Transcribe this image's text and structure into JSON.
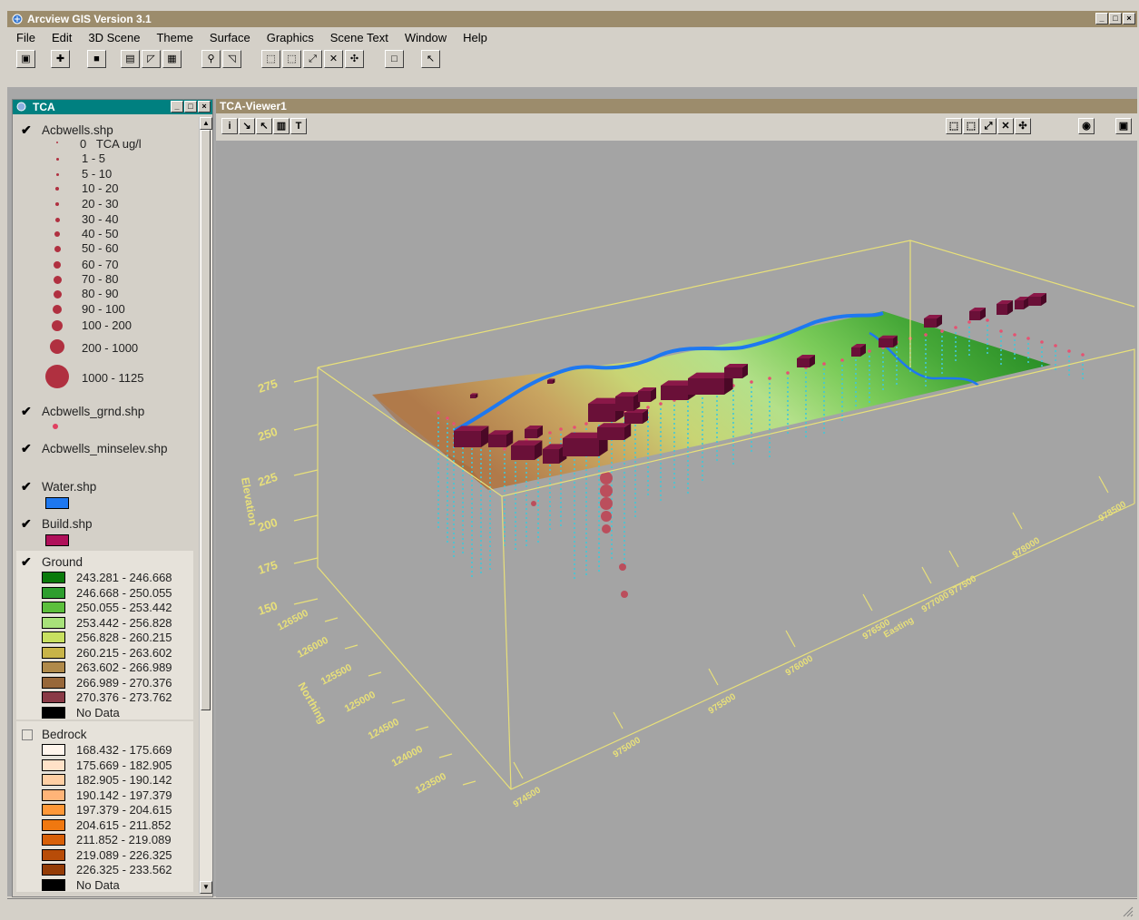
{
  "app": {
    "title": "Arcview GIS Version 3.1",
    "menu": [
      "File",
      "Edit",
      "3D Scene",
      "Theme",
      "Surface",
      "Graphics",
      "Scene Text",
      "Window",
      "Help"
    ]
  },
  "legend_window": {
    "title": "TCA",
    "themes": {
      "acbwells": {
        "name": "Acbwells.shp",
        "checked": true,
        "header": "0   TCA ug/l",
        "classes": [
          "1 - 5",
          "5 - 10",
          "10 - 20",
          "20 - 30",
          "30 - 40",
          "40 - 50",
          "50 - 60",
          "60 - 70",
          "70 - 80",
          "80 - 90",
          "90 - 100",
          "100 - 200",
          "200 - 1000",
          "1000 - 1125"
        ]
      },
      "acbwells_grnd": {
        "name": "Acbwells_grnd.shp",
        "checked": true
      },
      "acbwells_minselev": {
        "name": "Acbwells_minselev.shp",
        "checked": true
      },
      "water": {
        "name": "Water.shp",
        "checked": true,
        "color": "#1e78f0"
      },
      "build": {
        "name": "Build.shp",
        "checked": true,
        "color": "#b0105a"
      },
      "ground": {
        "name": "Ground",
        "checked": true,
        "classes": [
          {
            "label": "243.281 - 246.668",
            "color": "#0a7a0a"
          },
          {
            "label": "246.668 - 250.055",
            "color": "#2e9e2e"
          },
          {
            "label": "250.055 - 253.442",
            "color": "#5cbf3c"
          },
          {
            "label": "253.442 - 256.828",
            "color": "#a8e27a"
          },
          {
            "label": "256.828 - 260.215",
            "color": "#c8e060"
          },
          {
            "label": "260.215 - 263.602",
            "color": "#c8b448"
          },
          {
            "label": "263.602 - 266.989",
            "color": "#b08a4a"
          },
          {
            "label": "266.989 - 270.376",
            "color": "#98683a"
          },
          {
            "label": "270.376 - 273.762",
            "color": "#8a3a46"
          },
          {
            "label": "No Data",
            "color": "#000000"
          }
        ]
      },
      "bedrock": {
        "name": "Bedrock",
        "checked": false,
        "classes": [
          {
            "label": "168.432 - 175.669",
            "color": "#fff5ec"
          },
          {
            "label": "175.669 - 182.905",
            "color": "#ffe2c8"
          },
          {
            "label": "182.905 - 190.142",
            "color": "#ffcfa4"
          },
          {
            "label": "190.142 - 197.379",
            "color": "#ffb478"
          },
          {
            "label": "197.379 - 204.615",
            "color": "#ff9838"
          },
          {
            "label": "204.615 - 211.852",
            "color": "#f07810"
          },
          {
            "label": "211.852 - 219.089",
            "color": "#d86008"
          },
          {
            "label": "219.089 - 226.325",
            "color": "#b84c08"
          },
          {
            "label": "226.325 - 233.562",
            "color": "#943c06"
          },
          {
            "label": "No Data",
            "color": "#000000"
          }
        ]
      }
    }
  },
  "viewer": {
    "title": "TCA-Viewer1",
    "axes": {
      "elevation_label": "Elevation",
      "elevation_ticks": [
        "275",
        "250",
        "225",
        "200",
        "175",
        "150"
      ],
      "northing_label": "Northing",
      "northing_ticks": [
        "123500",
        "124000",
        "124500",
        "125000",
        "125500",
        "126000",
        "126500"
      ],
      "easting_label": "Easting",
      "easting_ticks": [
        "974500",
        "975000",
        "975500",
        "976000",
        "976500",
        "977000",
        "977500",
        "978000",
        "978500"
      ]
    }
  }
}
